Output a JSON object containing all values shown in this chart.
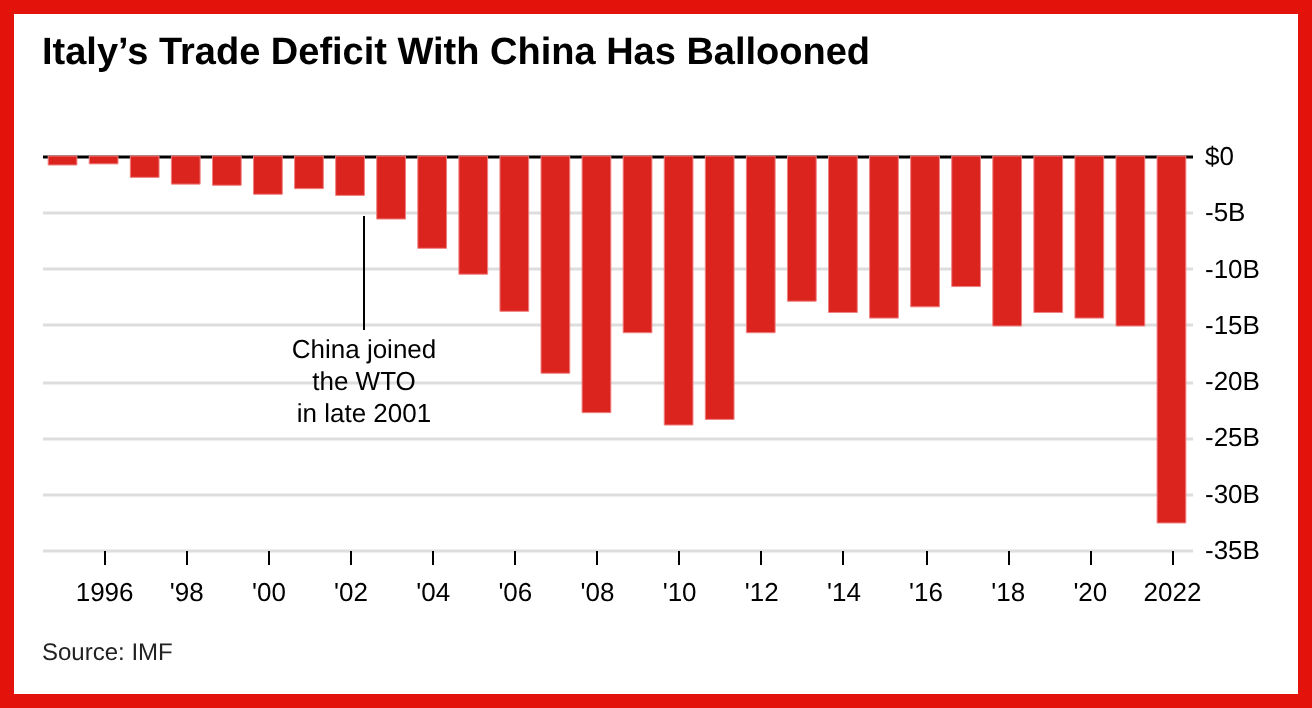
{
  "chart_data": {
    "type": "bar",
    "title": "Italy’s Trade Deficit With China Has Ballooned",
    "categories": [
      null,
      "1996",
      null,
      "'98",
      null,
      "'00",
      null,
      "'02",
      null,
      "'04",
      null,
      "'06",
      null,
      "'08",
      null,
      "'10",
      null,
      "'12",
      null,
      "'14",
      null,
      "'16",
      null,
      "'18",
      null,
      "'20",
      null,
      "2022"
    ],
    "values": [
      -0.8,
      -0.7,
      -1.9,
      -2.5,
      -2.6,
      -3.4,
      -2.9,
      -3.5,
      -5.6,
      -8.2,
      -10.5,
      -13.8,
      -19.3,
      -22.8,
      -15.7,
      -23.9,
      -23.4,
      -15.7,
      -12.9,
      -13.9,
      -14.4,
      -13.4,
      -11.6,
      -15.1,
      -13.9,
      -14.4,
      -15.1,
      -32.6
    ],
    "color": "#dc241f",
    "ylim": [
      -35,
      0
    ],
    "yticks": [
      {
        "value": 0,
        "label": "$0"
      },
      {
        "value": -5,
        "label": "-5B"
      },
      {
        "value": -10,
        "label": "-10B"
      },
      {
        "value": -15,
        "label": "-15B"
      },
      {
        "value": -20,
        "label": "-20B"
      },
      {
        "value": -25,
        "label": "-25B"
      },
      {
        "value": -30,
        "label": "-30B"
      },
      {
        "value": -35,
        "label": "-35B"
      }
    ],
    "grid": "y",
    "annotations": [
      "China joined\nthe WTO\nin late 2001",
      "Source: IMF"
    ]
  }
}
